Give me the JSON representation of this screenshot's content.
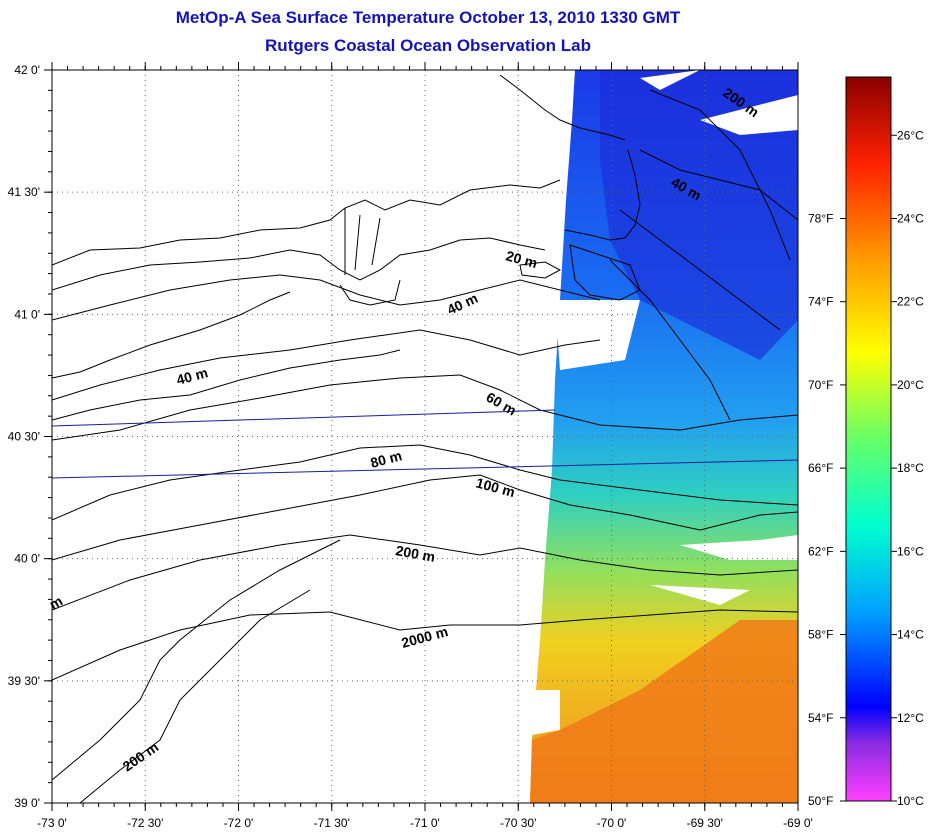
{
  "title": {
    "line1": "MetOp-A Sea Surface Temperature October 13, 2010 1330 GMT",
    "line2": "Rutgers Coastal Ocean Observation Lab"
  },
  "axes": {
    "lon_ticks": [
      "-73 0'",
      "-72 30'",
      "-72 0'",
      "-71 30'",
      "-71 0'",
      "-70 30'",
      "-70 0'",
      "-69 30'",
      "-69 0'"
    ],
    "lat_ticks": [
      "39 0'",
      "39 30'",
      "40 0'",
      "40 30'",
      "41 0'",
      "41 30'",
      "42 0'"
    ]
  },
  "colorbar": {
    "celsius": [
      "10°C",
      "12°C",
      "14°C",
      "16°C",
      "18°C",
      "20°C",
      "22°C",
      "24°C",
      "26°C"
    ],
    "fahrenheit": [
      "50°F",
      "54°F",
      "58°F",
      "62°F",
      "66°F",
      "70°F",
      "74°F",
      "78°F"
    ],
    "stops": [
      "#ff40ff",
      "#8a2be2",
      "#0000ff",
      "#00b4ff",
      "#00ffd0",
      "#66ff66",
      "#ffff00",
      "#ff9900",
      "#ff2200",
      "#8b0000"
    ]
  },
  "isobaths": [
    "200 m",
    "40 m",
    "20 m",
    "40 m",
    "40 m",
    "60 m",
    "80 m",
    "100 m",
    "200 m",
    "2000 m",
    "200 m",
    "m"
  ]
}
